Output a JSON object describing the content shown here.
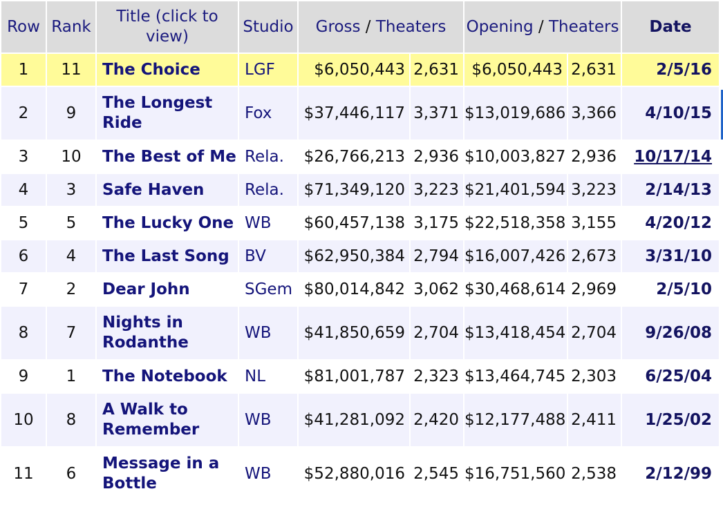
{
  "table": {
    "headers": {
      "row": "Row",
      "rank": "Rank",
      "title": "Title (click to view)",
      "studio": "Studio",
      "gross": "Gross",
      "gross_sep": " / ",
      "gross_theaters": "Theaters",
      "opening": "Opening",
      "opening_sep": " / ",
      "opening_theaters": "Theaters",
      "date": "Date"
    },
    "rows": [
      {
        "row": "1",
        "rank": "11",
        "title": "The Choice",
        "studio": "LGF",
        "gross": "$6,050,443",
        "gross_theaters": "2,631",
        "opening": "$6,050,443",
        "opening_theaters": "2,631",
        "date": "2/5/16"
      },
      {
        "row": "2",
        "rank": "9",
        "title": "The Longest Ride",
        "studio": "Fox",
        "gross": "$37,446,117",
        "gross_theaters": "3,371",
        "opening": "$13,019,686",
        "opening_theaters": "3,366",
        "date": "4/10/15"
      },
      {
        "row": "3",
        "rank": "10",
        "title": "The Best of Me",
        "studio": "Rela.",
        "gross": "$26,766,213",
        "gross_theaters": "2,936",
        "opening": "$10,003,827",
        "opening_theaters": "2,936",
        "date": "10/17/14"
      },
      {
        "row": "4",
        "rank": "3",
        "title": "Safe Haven",
        "studio": "Rela.",
        "gross": "$71,349,120",
        "gross_theaters": "3,223",
        "opening": "$21,401,594",
        "opening_theaters": "3,223",
        "date": "2/14/13"
      },
      {
        "row": "5",
        "rank": "5",
        "title": "The Lucky One",
        "studio": "WB",
        "gross": "$60,457,138",
        "gross_theaters": "3,175",
        "opening": "$22,518,358",
        "opening_theaters": "3,155",
        "date": "4/20/12"
      },
      {
        "row": "6",
        "rank": "4",
        "title": "The Last Song",
        "studio": "BV",
        "gross": "$62,950,384",
        "gross_theaters": "2,794",
        "opening": "$16,007,426",
        "opening_theaters": "2,673",
        "date": "3/31/10"
      },
      {
        "row": "7",
        "rank": "2",
        "title": "Dear John",
        "studio": "SGem",
        "gross": "$80,014,842",
        "gross_theaters": "3,062",
        "opening": "$30,468,614",
        "opening_theaters": "2,969",
        "date": "2/5/10"
      },
      {
        "row": "8",
        "rank": "7",
        "title": "Nights in Rodanthe",
        "studio": "WB",
        "gross": "$41,850,659",
        "gross_theaters": "2,704",
        "opening": "$13,418,454",
        "opening_theaters": "2,704",
        "date": "9/26/08"
      },
      {
        "row": "9",
        "rank": "1",
        "title": "The Notebook",
        "studio": "NL",
        "gross": "$81,001,787",
        "gross_theaters": "2,323",
        "opening": "$13,464,745",
        "opening_theaters": "2,303",
        "date": "6/25/04"
      },
      {
        "row": "10",
        "rank": "8",
        "title": "A Walk to Remember",
        "studio": "WB",
        "gross": "$41,281,092",
        "gross_theaters": "2,420",
        "opening": "$12,177,488",
        "opening_theaters": "2,411",
        "date": "1/25/02"
      },
      {
        "row": "11",
        "rank": "6",
        "title": "Message in a Bottle",
        "studio": "WB",
        "gross": "$52,880,016",
        "gross_theaters": "2,545",
        "opening": "$16,751,560",
        "opening_theaters": "2,538",
        "date": "2/12/99"
      }
    ]
  },
  "colors": {
    "header_bg": "#dcdcdc",
    "highlight_row": "#fffb99",
    "alt_row": "#f1f1fd",
    "link_text": "#14147a"
  }
}
